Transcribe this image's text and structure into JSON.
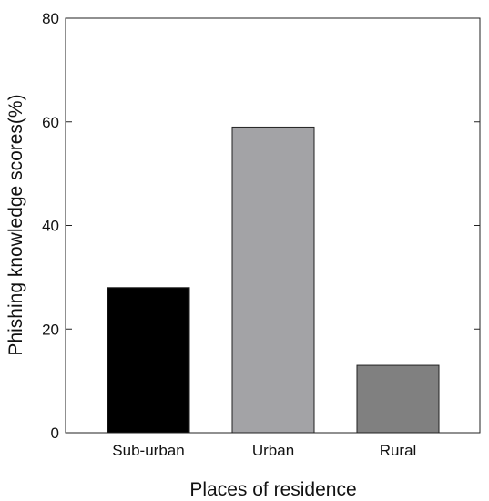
{
  "chart_data": {
    "type": "bar",
    "title": "",
    "xlabel": "Places of residence",
    "ylabel": "Phishing knowledge scores(%)",
    "categories": [
      "Sub-urban",
      "Urban",
      "Rural"
    ],
    "values": [
      28,
      59,
      13
    ],
    "bar_colors": [
      "#000000",
      "#a3a3a6",
      "#808080"
    ],
    "ylim": [
      0,
      80
    ],
    "yticks": [
      0,
      20,
      40,
      60,
      80
    ],
    "grid": false,
    "legend": "none"
  }
}
